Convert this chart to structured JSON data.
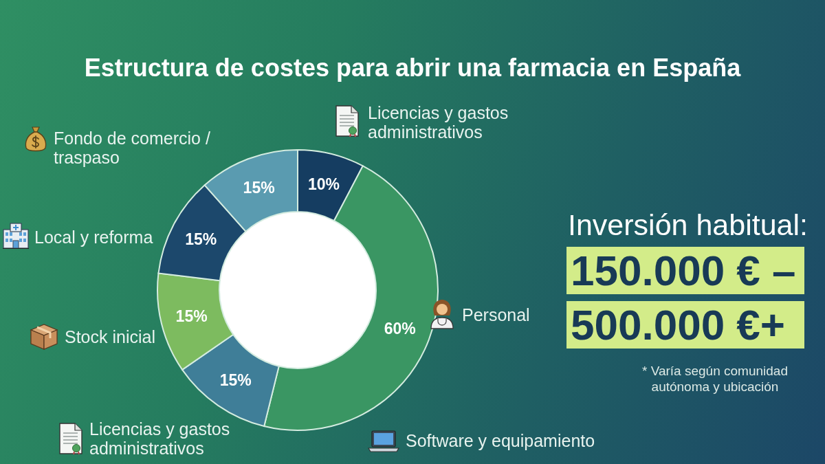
{
  "chart_data": {
    "type": "donut",
    "title": "Estructura de costes para abrir una farmacia en España",
    "categories": [
      "Licencias y gastos administrativos",
      "Personal",
      "Licencias y gastos administrativos",
      "Stock inicial",
      "Local y reforma",
      "Fondo de comercio / traspaso"
    ],
    "values": [
      10,
      60,
      15,
      15,
      15,
      15
    ],
    "colors": [
      "#153d61",
      "#3a9663",
      "#3f7e98",
      "#7dbb5f",
      "#1c486c",
      "#5a9bb0"
    ],
    "value_labels": [
      "10%",
      "60%",
      "15%",
      "15%",
      "15%",
      "15%"
    ],
    "annotations": [
      "Software y equipamiento",
      "Inversión habitual:",
      "150.000 € –",
      "500.000 €+",
      "* Varía según comunidad autónoma y ubicación"
    ]
  }
}
